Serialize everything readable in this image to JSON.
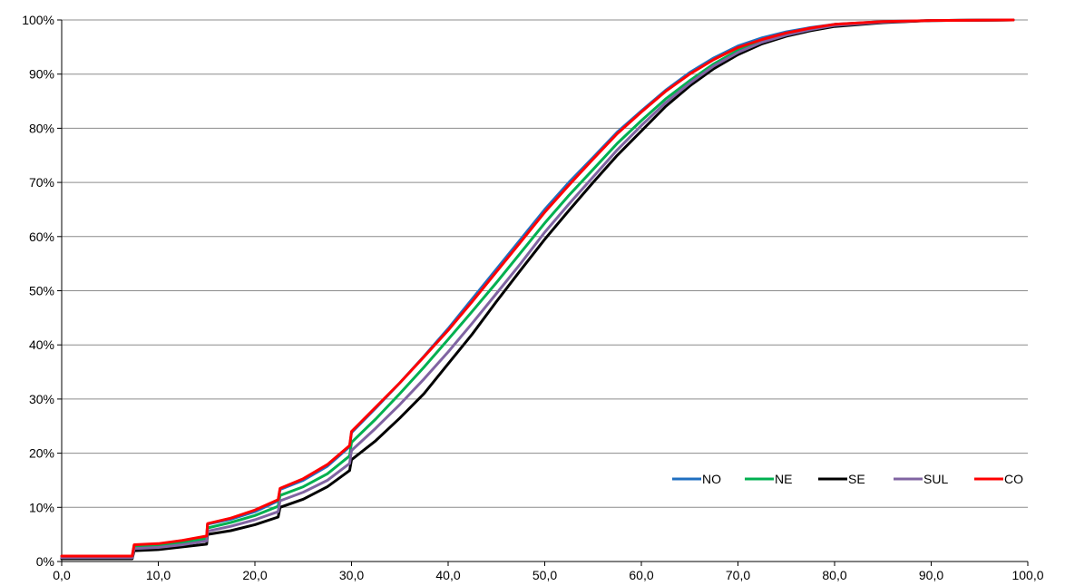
{
  "chart_data": {
    "type": "line",
    "xlim": [
      0,
      100
    ],
    "ylim": [
      0,
      100
    ],
    "x_ticks": [
      "0,0",
      "10,0",
      "20,0",
      "30,0",
      "40,0",
      "50,0",
      "60,0",
      "70,0",
      "80,0",
      "90,0",
      "100,0"
    ],
    "y_ticks": [
      "0%",
      "10%",
      "20%",
      "30%",
      "40%",
      "50%",
      "60%",
      "70%",
      "80%",
      "90%",
      "100%"
    ],
    "grid": "horizontal",
    "legend_position": "bottom-right",
    "series": [
      {
        "name": "NO",
        "color": "#1f6fc0",
        "points": [
          [
            0,
            1
          ],
          [
            7.3,
            1
          ],
          [
            7.5,
            3
          ],
          [
            10,
            3.2
          ],
          [
            12.5,
            3.8
          ],
          [
            15,
            4.5
          ],
          [
            15.1,
            6.9
          ],
          [
            17.5,
            7.8
          ],
          [
            20,
            9.2
          ],
          [
            22.4,
            11.2
          ],
          [
            22.6,
            13.3
          ],
          [
            25,
            15
          ],
          [
            27.5,
            17.6
          ],
          [
            29.8,
            21.2
          ],
          [
            30,
            23.8
          ],
          [
            32.5,
            28.3
          ],
          [
            35,
            33
          ],
          [
            37.5,
            37.9
          ],
          [
            40,
            43
          ],
          [
            42.5,
            48.5
          ],
          [
            45,
            54
          ],
          [
            47.5,
            59.5
          ],
          [
            50,
            65
          ],
          [
            52.5,
            70
          ],
          [
            55,
            74.6
          ],
          [
            57.5,
            79.3
          ],
          [
            60,
            83.2
          ],
          [
            62.5,
            87
          ],
          [
            65,
            90.3
          ],
          [
            67.5,
            93
          ],
          [
            70,
            95.2
          ],
          [
            72.5,
            96.7
          ],
          [
            75,
            97.8
          ],
          [
            77.5,
            98.6
          ],
          [
            80,
            99.2
          ],
          [
            85,
            99.7
          ],
          [
            90,
            99.9
          ],
          [
            98.5,
            100
          ]
        ]
      },
      {
        "name": "NE",
        "color": "#00b050",
        "points": [
          [
            0,
            0.8
          ],
          [
            7.3,
            0.8
          ],
          [
            7.5,
            2.7
          ],
          [
            10,
            3
          ],
          [
            12.5,
            3.5
          ],
          [
            15,
            4.2
          ],
          [
            15.1,
            6.2
          ],
          [
            17.5,
            7.2
          ],
          [
            20,
            8.5
          ],
          [
            22.4,
            10.2
          ],
          [
            22.6,
            12.2
          ],
          [
            25,
            13.8
          ],
          [
            27.5,
            16.2
          ],
          [
            29.8,
            19.5
          ],
          [
            30,
            22
          ],
          [
            32.5,
            26.3
          ],
          [
            35,
            31
          ],
          [
            37.5,
            35.9
          ],
          [
            40,
            41
          ],
          [
            42.5,
            46.2
          ],
          [
            45,
            51.5
          ],
          [
            47.5,
            57
          ],
          [
            50,
            62.5
          ],
          [
            52.5,
            67.6
          ],
          [
            55,
            72.4
          ],
          [
            57.5,
            77.2
          ],
          [
            60,
            81.4
          ],
          [
            62.5,
            85.4
          ],
          [
            65,
            88.8
          ],
          [
            67.5,
            91.9
          ],
          [
            70,
            94.4
          ],
          [
            72.5,
            96.1
          ],
          [
            75,
            97.4
          ],
          [
            77.5,
            98.4
          ],
          [
            80,
            99.1
          ],
          [
            85,
            99.6
          ],
          [
            90,
            99.9
          ],
          [
            98.5,
            100
          ]
        ]
      },
      {
        "name": "SE",
        "color": "#000000",
        "points": [
          [
            0,
            0.5
          ],
          [
            7.3,
            0.5
          ],
          [
            7.5,
            2
          ],
          [
            10,
            2.2
          ],
          [
            12.5,
            2.7
          ],
          [
            15,
            3.2
          ],
          [
            15.1,
            5
          ],
          [
            17.5,
            5.7
          ],
          [
            20,
            6.8
          ],
          [
            22.4,
            8.2
          ],
          [
            22.6,
            10
          ],
          [
            25,
            11.5
          ],
          [
            27.5,
            13.8
          ],
          [
            29.8,
            16.8
          ],
          [
            30,
            18.8
          ],
          [
            32.5,
            22.3
          ],
          [
            35,
            26.5
          ],
          [
            37.5,
            31
          ],
          [
            40,
            36.5
          ],
          [
            42.5,
            42
          ],
          [
            45,
            48
          ],
          [
            47.5,
            53.8
          ],
          [
            50,
            59.5
          ],
          [
            52.5,
            64.8
          ],
          [
            55,
            70
          ],
          [
            57.5,
            75
          ],
          [
            60,
            79.5
          ],
          [
            62.5,
            84
          ],
          [
            65,
            87.8
          ],
          [
            67.5,
            91
          ],
          [
            70,
            93.6
          ],
          [
            72.5,
            95.6
          ],
          [
            75,
            97
          ],
          [
            77.5,
            98
          ],
          [
            80,
            98.8
          ],
          [
            85,
            99.5
          ],
          [
            90,
            99.9
          ],
          [
            98.5,
            100
          ]
        ]
      },
      {
        "name": "SUL",
        "color": "#8064a2",
        "points": [
          [
            0,
            0.7
          ],
          [
            7.3,
            0.7
          ],
          [
            7.5,
            2.4
          ],
          [
            10,
            2.6
          ],
          [
            12.5,
            3.1
          ],
          [
            15,
            3.8
          ],
          [
            15.1,
            5.6
          ],
          [
            17.5,
            6.5
          ],
          [
            20,
            7.7
          ],
          [
            22.4,
            9.2
          ],
          [
            22.6,
            11.2
          ],
          [
            25,
            12.8
          ],
          [
            27.5,
            15
          ],
          [
            29.8,
            18.1
          ],
          [
            30,
            20.5
          ],
          [
            32.5,
            24.6
          ],
          [
            35,
            29
          ],
          [
            37.5,
            33.7
          ],
          [
            40,
            38.7
          ],
          [
            42.5,
            44
          ],
          [
            45,
            49.5
          ],
          [
            47.5,
            55
          ],
          [
            50,
            60.8
          ],
          [
            52.5,
            66
          ],
          [
            55,
            71
          ],
          [
            57.5,
            76
          ],
          [
            60,
            80.5
          ],
          [
            62.5,
            84.7
          ],
          [
            65,
            88.3
          ],
          [
            67.5,
            91.5
          ],
          [
            70,
            94
          ],
          [
            72.5,
            95.9
          ],
          [
            75,
            97.2
          ],
          [
            77.5,
            98.2
          ],
          [
            80,
            99
          ],
          [
            85,
            99.6
          ],
          [
            90,
            99.9
          ],
          [
            98.5,
            100
          ]
        ]
      },
      {
        "name": "CO",
        "color": "#ff0000",
        "points": [
          [
            0,
            1
          ],
          [
            7.3,
            1
          ],
          [
            7.5,
            3.1
          ],
          [
            10,
            3.3
          ],
          [
            12.5,
            3.9
          ],
          [
            15,
            4.7
          ],
          [
            15.1,
            7
          ],
          [
            17.5,
            8
          ],
          [
            20,
            9.5
          ],
          [
            22.4,
            11.4
          ],
          [
            22.6,
            13.5
          ],
          [
            25,
            15.3
          ],
          [
            27.5,
            17.9
          ],
          [
            29.8,
            21.4
          ],
          [
            30,
            24
          ],
          [
            32.5,
            28.5
          ],
          [
            35,
            33
          ],
          [
            37.5,
            37.8
          ],
          [
            40,
            42.7
          ],
          [
            42.5,
            48
          ],
          [
            45,
            53.5
          ],
          [
            47.5,
            59
          ],
          [
            50,
            64.5
          ],
          [
            52.5,
            69.5
          ],
          [
            55,
            74.3
          ],
          [
            57.5,
            79
          ],
          [
            60,
            83
          ],
          [
            62.5,
            86.8
          ],
          [
            65,
            90
          ],
          [
            67.5,
            92.7
          ],
          [
            70,
            94.9
          ],
          [
            72.5,
            96.4
          ],
          [
            75,
            97.6
          ],
          [
            77.5,
            98.5
          ],
          [
            80,
            99.2
          ],
          [
            85,
            99.7
          ],
          [
            90,
            99.9
          ],
          [
            98.5,
            100
          ]
        ]
      }
    ]
  }
}
